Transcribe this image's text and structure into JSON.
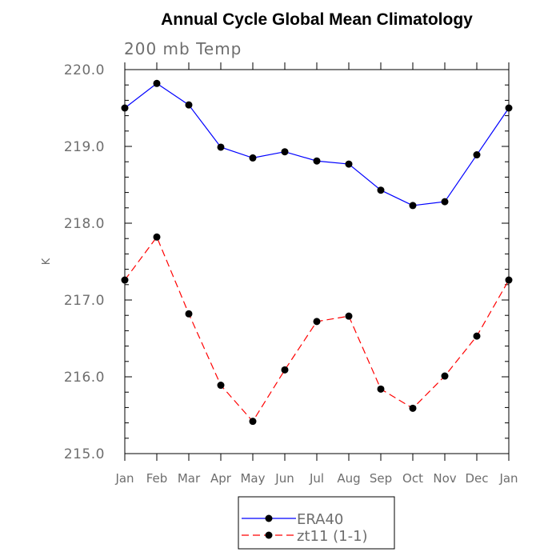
{
  "chart_data": {
    "type": "line",
    "title": "Annual Cycle Global Mean Climatology",
    "subtitle": "200 mb Temp",
    "xlabel": "",
    "ylabel": "K",
    "categories": [
      "Jan",
      "Feb",
      "Mar",
      "Apr",
      "May",
      "Jun",
      "Jul",
      "Aug",
      "Sep",
      "Oct",
      "Nov",
      "Dec",
      "Jan"
    ],
    "ylim": [
      215.0,
      220.0
    ],
    "yticks": [
      "215.0",
      "216.0",
      "217.0",
      "218.0",
      "219.0",
      "220.0"
    ],
    "series": [
      {
        "name": "ERA40",
        "color": "#0000ff",
        "line_style": "solid",
        "marker": "filled-circle",
        "values": [
          219.5,
          219.82,
          219.54,
          218.99,
          218.85,
          218.93,
          218.81,
          218.77,
          218.43,
          218.23,
          218.28,
          218.89,
          219.5
        ]
      },
      {
        "name": "zt11 (1-1)",
        "color": "#ff0000",
        "line_style": "dashed",
        "marker": "filled-circle",
        "values": [
          217.26,
          217.82,
          216.82,
          215.89,
          215.42,
          216.09,
          216.72,
          216.79,
          215.84,
          215.59,
          216.01,
          216.53,
          217.26
        ]
      }
    ],
    "grid": false,
    "legend_position": "bottom-center"
  }
}
